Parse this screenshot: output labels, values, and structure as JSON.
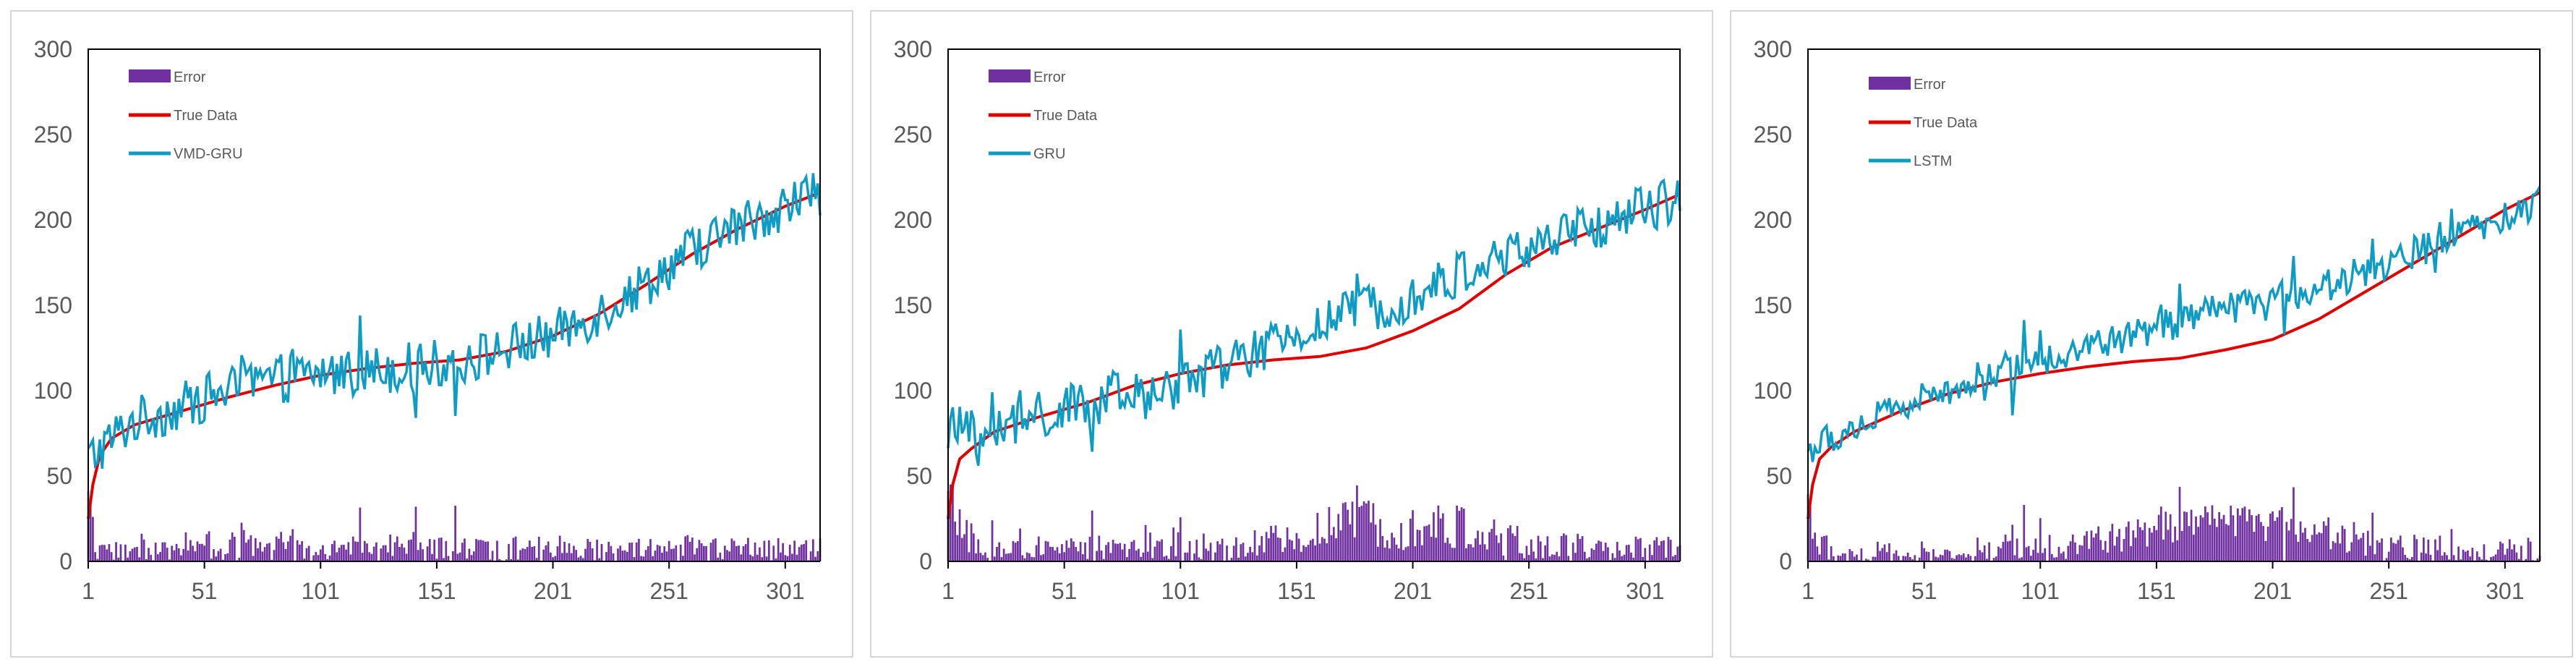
{
  "colors": {
    "error": "#7030a0",
    "true_data": "#e00000",
    "prediction": "#0e9bc4",
    "axis": "#000000"
  },
  "chart_data": [
    {
      "type": "line",
      "title": "",
      "xlabel": "",
      "ylabel": "",
      "ylim": [
        0,
        300
      ],
      "y_ticks": [
        "0",
        "50",
        "100",
        "150",
        "200",
        "250",
        "300"
      ],
      "x_ticks": [
        "1",
        "51",
        "101",
        "151",
        "201",
        "251",
        "301"
      ],
      "x_range": [
        1,
        316
      ],
      "legend_position": "top-left",
      "grid": false,
      "series": [
        {
          "name": "Error",
          "kind": "bar"
        },
        {
          "name": "True Data",
          "kind": "line",
          "points": [
            [
              1,
              25
            ],
            [
              3,
              45
            ],
            [
              6,
              62
            ],
            [
              11,
              72
            ],
            [
              21,
              80
            ],
            [
              41,
              88
            ],
            [
              61,
              96
            ],
            [
              81,
              103
            ],
            [
              101,
              109
            ],
            [
              121,
              113
            ],
            [
              141,
              116
            ],
            [
              161,
              118
            ],
            [
              181,
              123
            ],
            [
              201,
              132
            ],
            [
              221,
              145
            ],
            [
              241,
              162
            ],
            [
              261,
              180
            ],
            [
              281,
              195
            ],
            [
              301,
              208
            ],
            [
              316,
              216
            ]
          ]
        },
        {
          "name": "VMD-GRU",
          "kind": "line",
          "anchors": [
            [
              1,
              60
            ],
            [
              20,
              82
            ],
            [
              40,
              90
            ],
            [
              60,
              100
            ],
            [
              80,
              106
            ],
            [
              100,
              110
            ],
            [
              130,
              113
            ],
            [
              160,
              117
            ],
            [
              180,
              124
            ],
            [
              200,
              132
            ],
            [
              220,
              145
            ],
            [
              240,
              162
            ],
            [
              260,
              182
            ],
            [
              280,
              196
            ],
            [
              300,
              208
            ],
            [
              316,
              217
            ]
          ],
          "noise": 9
        }
      ]
    },
    {
      "type": "line",
      "title": "",
      "xlabel": "",
      "ylabel": "",
      "ylim": [
        0,
        300
      ],
      "y_ticks": [
        "0",
        "50",
        "100",
        "150",
        "200",
        "250",
        "300"
      ],
      "x_ticks": [
        "1",
        "51",
        "101",
        "151",
        "201",
        "251",
        "301"
      ],
      "x_range": [
        1,
        316
      ],
      "legend_position": "top-left",
      "grid": false,
      "series": [
        {
          "name": "Error",
          "kind": "bar"
        },
        {
          "name": "True Data",
          "kind": "line",
          "points": [
            [
              1,
              25
            ],
            [
              3,
              45
            ],
            [
              6,
              60
            ],
            [
              11,
              66
            ],
            [
              21,
              76
            ],
            [
              41,
              85
            ],
            [
              61,
              93
            ],
            [
              81,
              103
            ],
            [
              101,
              110
            ],
            [
              121,
              115
            ],
            [
              141,
              118
            ],
            [
              161,
              120
            ],
            [
              181,
              125
            ],
            [
              201,
              135
            ],
            [
              221,
              148
            ],
            [
              241,
              168
            ],
            [
              261,
              184
            ],
            [
              281,
              195
            ],
            [
              301,
              206
            ],
            [
              316,
              215
            ]
          ]
        },
        {
          "name": "GRU",
          "kind": "line",
          "anchors": [
            [
              1,
              78
            ],
            [
              15,
              74
            ],
            [
              30,
              80
            ],
            [
              50,
              88
            ],
            [
              70,
              95
            ],
            [
              90,
              97
            ],
            [
              101,
              105
            ],
            [
              120,
              115
            ],
            [
              140,
              125
            ],
            [
              160,
              138
            ],
            [
              180,
              148
            ],
            [
              200,
              155
            ],
            [
              220,
              167
            ],
            [
              240,
              178
            ],
            [
              260,
              188
            ],
            [
              280,
              196
            ],
            [
              300,
              207
            ],
            [
              316,
              212
            ]
          ],
          "noise": 9
        }
      ]
    },
    {
      "type": "line",
      "title": "",
      "xlabel": "",
      "ylabel": "",
      "ylim": [
        0,
        300
      ],
      "y_ticks": [
        "0",
        "50",
        "100",
        "150",
        "200",
        "250",
        "300"
      ],
      "x_ticks": [
        "1",
        "51",
        "101",
        "151",
        "201",
        "251",
        "301"
      ],
      "x_range": [
        1,
        316
      ],
      "legend_position": "top-left",
      "grid": false,
      "series": [
        {
          "name": "Error",
          "kind": "bar"
        },
        {
          "name": "True Data",
          "kind": "line",
          "points": [
            [
              1,
              25
            ],
            [
              3,
              45
            ],
            [
              6,
              60
            ],
            [
              11,
              67
            ],
            [
              21,
              76
            ],
            [
              41,
              88
            ],
            [
              61,
              98
            ],
            [
              81,
              105
            ],
            [
              101,
              110
            ],
            [
              121,
              114
            ],
            [
              141,
              117
            ],
            [
              161,
              119
            ],
            [
              181,
              124
            ],
            [
              201,
              130
            ],
            [
              221,
              142
            ],
            [
              241,
              158
            ],
            [
              261,
              174
            ],
            [
              281,
              190
            ],
            [
              301,
              206
            ],
            [
              316,
              216
            ]
          ]
        },
        {
          "name": "LSTM",
          "kind": "line",
          "anchors": [
            [
              1,
              65
            ],
            [
              20,
              78
            ],
            [
              40,
              90
            ],
            [
              60,
              100
            ],
            [
              80,
              110
            ],
            [
              100,
              118
            ],
            [
              120,
              125
            ],
            [
              140,
              132
            ],
            [
              160,
              140
            ],
            [
              180,
              148
            ],
            [
              200,
              153
            ],
            [
              220,
              160
            ],
            [
              240,
              168
            ],
            [
              260,
              180
            ],
            [
              280,
              190
            ],
            [
              300,
              200
            ],
            [
              316,
              210
            ]
          ],
          "noise": 6
        }
      ]
    }
  ]
}
